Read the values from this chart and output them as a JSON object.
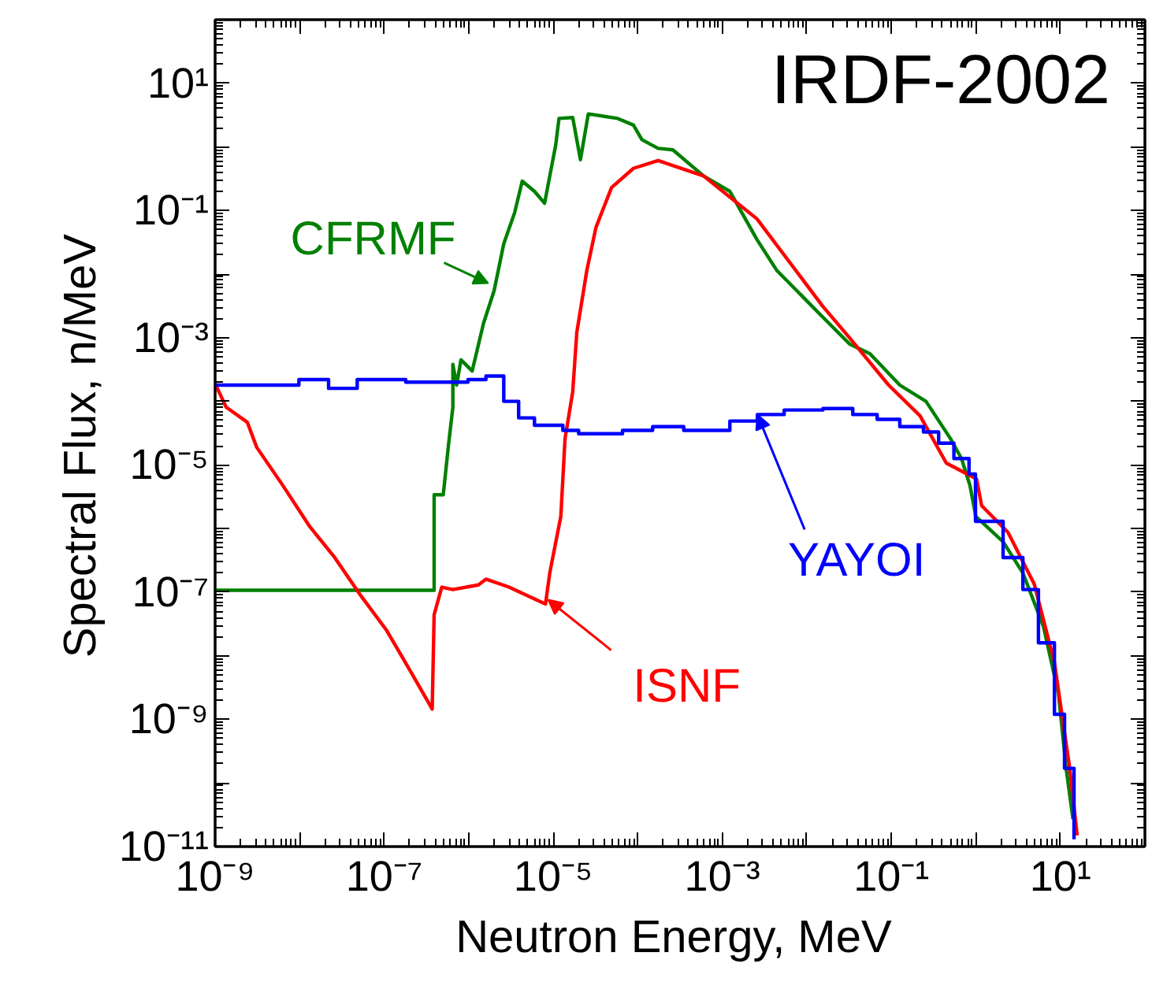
{
  "chart_data": {
    "type": "line",
    "title": "IRDF-2002",
    "xlabel": "Neutron Energy,  MeV",
    "ylabel": "Spectral Flux,   n/MeV",
    "log": "xy",
    "grid": false,
    "xlim": [
      1e-09,
      100
    ],
    "ylim": [
      1e-11,
      100
    ],
    "xticks": [
      {
        "value": 1e-09,
        "label": "10⁻⁹"
      },
      {
        "value": 1e-08,
        "label": null
      },
      {
        "value": 1e-07,
        "label": "10⁻⁷"
      },
      {
        "value": 1e-06,
        "label": null
      },
      {
        "value": 1e-05,
        "label": "10⁻⁵"
      },
      {
        "value": 0.0001,
        "label": null
      },
      {
        "value": 0.001,
        "label": "10⁻³"
      },
      {
        "value": 0.01,
        "label": null
      },
      {
        "value": 0.1,
        "label": "10⁻¹"
      },
      {
        "value": 1,
        "label": null
      },
      {
        "value": 10,
        "label": "10¹"
      }
    ],
    "yticks": [
      {
        "value": 1e-11,
        "label": "10⁻¹¹"
      },
      {
        "value": 1e-10,
        "label": null
      },
      {
        "value": 1e-09,
        "label": "10⁻⁹"
      },
      {
        "value": 1e-08,
        "label": null
      },
      {
        "value": 1e-07,
        "label": "10⁻⁷"
      },
      {
        "value": 1e-06,
        "label": null
      },
      {
        "value": 1e-05,
        "label": "10⁻⁵"
      },
      {
        "value": 0.0001,
        "label": null
      },
      {
        "value": 0.001,
        "label": "10⁻³"
      },
      {
        "value": 0.01,
        "label": null
      },
      {
        "value": 0.1,
        "label": "10⁻¹"
      },
      {
        "value": 1,
        "label": null
      },
      {
        "value": 10,
        "label": "10¹"
      }
    ],
    "series": [
      {
        "color": "#008000",
        "x": [
          1e-09,
          3.9e-07,
          3.9e-07,
          5e-07,
          5.8e-07,
          6.5e-07,
          6.5e-07,
          7.2e-07,
          8.1e-07,
          1.1e-06,
          1.5e-06,
          2e-06,
          2.6e-06,
          3.5e-06,
          4.3e-06,
          6e-06,
          7.9e-06,
          1.07e-05,
          1.17e-05,
          1.7e-05,
          2.1e-05,
          2.6e-05,
          5.8e-05,
          8.9e-05,
          0.000112,
          0.000174,
          0.00026,
          0.0006,
          0.00123,
          0.00257,
          0.0044,
          0.0076,
          0.0155,
          0.032,
          0.056,
          0.126,
          0.257,
          0.5,
          0.676,
          0.85,
          1.0,
          2.1,
          3.6,
          6.3,
          9.5,
          11.7,
          14.1
        ],
        "values": [
          1.07e-07,
          1.07e-07,
          3.4e-06,
          3.4e-06,
          2.2e-05,
          8.1e-05,
          0.00038,
          0.00018,
          0.00045,
          0.0003,
          0.0017,
          0.0055,
          0.03,
          0.093,
          0.29,
          0.2,
          0.13,
          1.07,
          2.8,
          2.9,
          0.63,
          3.3,
          2.8,
          2.2,
          1.3,
          0.95,
          0.9,
          0.35,
          0.2,
          0.035,
          0.0115,
          0.0055,
          0.0021,
          0.0008,
          0.00056,
          0.00018,
          0.0001,
          2.6e-05,
          1.26e-05,
          4.8e-06,
          1.55e-06,
          6.2e-07,
          2e-07,
          2.9e-08,
          2.5e-09,
          1.7e-10,
          2.7e-11
        ]
      },
      {
        "color": "#ff0000",
        "x": [
          1e-09,
          1.35e-09,
          2.4e-09,
          3.1e-09,
          6.3e-09,
          1.3e-08,
          2.6e-08,
          5.2e-08,
          1.07e-07,
          2.1e-07,
          3.7e-07,
          3.9e-07,
          4.8e-07,
          6.5e-07,
          1.3e-06,
          1.6e-06,
          3e-06,
          8.1e-06,
          9.1e-06,
          1.23e-05,
          1.38e-05,
          1.7e-05,
          1.9e-05,
          2.5e-05,
          3.2e-05,
          4.9e-05,
          8.9e-05,
          0.000174,
          0.0006,
          0.00257,
          0.0066,
          0.0155,
          0.032,
          0.093,
          0.219,
          0.447,
          1.02,
          1.17,
          2.4,
          4.9,
          8.5,
          12.9,
          15.8
        ],
        "values": [
          0.00019,
          8.1e-05,
          4.7e-05,
          1.9e-05,
          4.8e-06,
          1.1e-06,
          3.5e-07,
          9.1e-08,
          2.5e-08,
          5.4e-09,
          1.45e-09,
          4.4e-08,
          1.2e-07,
          1.1e-07,
          1.3e-07,
          1.6e-07,
          1.2e-07,
          6.5e-08,
          2e-07,
          1.55e-06,
          2.6e-05,
          0.00014,
          0.0012,
          0.0115,
          0.054,
          0.23,
          0.46,
          0.61,
          0.35,
          0.074,
          0.014,
          0.0031,
          0.001,
          0.00018,
          5.9e-05,
          1.07e-05,
          6e-06,
          2.3e-06,
          8.7e-07,
          1.35e-07,
          7.9e-09,
          1.7e-10,
          1.5e-11
        ]
      },
      {
        "color": "#0000ff",
        "type": "step",
        "x": [
          1e-09,
          9.8e-09,
          2.2e-08,
          4.8e-08,
          1.8e-07,
          9.8e-07,
          1.6e-06,
          2.6e-06,
          3.9e-06,
          6e-06,
          1.3e-05,
          2e-05,
          6.6e-05,
          0.00015,
          0.00035,
          0.00123,
          0.0026,
          0.0054,
          0.0155,
          0.035,
          0.068,
          0.126,
          0.24,
          0.363,
          0.55,
          0.83,
          0.99,
          2.1,
          3.6,
          5.5,
          8.5,
          11.2,
          14.5
        ],
        "values": [
          0.00018,
          0.00022,
          0.00016,
          0.00022,
          0.0002,
          0.00022,
          0.00025,
          0.0001,
          5.5e-05,
          4.2e-05,
          3.5e-05,
          3.1e-05,
          3.5e-05,
          4e-05,
          3.5e-05,
          4.9e-05,
          6.2e-05,
          7.3e-05,
          7.7e-05,
          6.2e-05,
          5.2e-05,
          4e-05,
          3.3e-05,
          2.2e-05,
          1.26e-05,
          7.2e-06,
          1.3e-06,
          3.5e-07,
          1.1e-07,
          1.6e-08,
          1.2e-09,
          1.7e-10,
          1.3e-11
        ]
      }
    ],
    "annotations": [
      {
        "text": "CFRMF",
        "x": 1.7e-06,
        "y": 0.0072
      },
      {
        "text": "ISNF",
        "x": 8.7e-06,
        "y": 7.6e-08
      },
      {
        "text": "YAYOI",
        "x": 0.0026,
        "y": 6.2e-05
      }
    ]
  }
}
